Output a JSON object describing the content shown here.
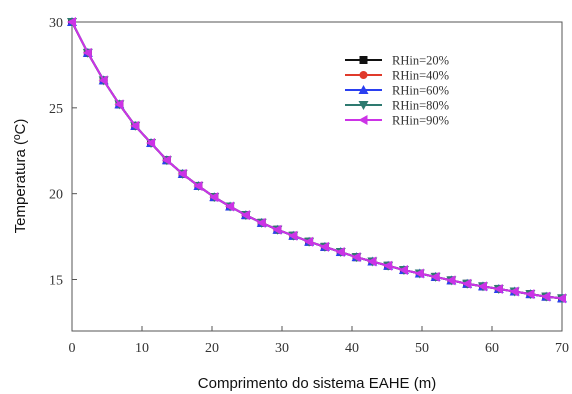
{
  "chart_data": {
    "type": "line",
    "xlabel": "Comprimento do sistema EAHE (m)",
    "ylabel": "Temperatura (ºC)",
    "xlim": [
      0,
      70
    ],
    "ylim": [
      12,
      30
    ],
    "x_ticks": [
      0,
      10,
      20,
      30,
      40,
      50,
      60,
      70
    ],
    "y_ticks": [
      15,
      20,
      25,
      30
    ],
    "grid": false,
    "legend_position": "top-right",
    "x": [
      0,
      2.26,
      4.52,
      6.77,
      9.03,
      11.29,
      13.55,
      15.81,
      18.06,
      20.32,
      22.58,
      24.84,
      27.1,
      29.35,
      31.61,
      33.87,
      36.13,
      38.39,
      40.65,
      42.9,
      45.16,
      47.42,
      49.68,
      51.94,
      54.19,
      56.45,
      58.71,
      60.97,
      63.23,
      65.48,
      67.74,
      70
    ],
    "series": [
      {
        "name": "RHin=20%",
        "marker": "square",
        "color": "#111111",
        "values": [
          30.0,
          28.2,
          26.6,
          25.2,
          23.95,
          22.95,
          21.95,
          21.15,
          20.45,
          19.8,
          19.25,
          18.75,
          18.3,
          17.9,
          17.55,
          17.2,
          16.9,
          16.6,
          16.3,
          16.05,
          15.8,
          15.55,
          15.35,
          15.15,
          14.95,
          14.75,
          14.6,
          14.45,
          14.3,
          14.15,
          14.0,
          13.9
        ]
      },
      {
        "name": "RHin=40%",
        "marker": "circle",
        "color": "#e03a2b",
        "values": [
          30.0,
          28.2,
          26.6,
          25.2,
          23.95,
          22.95,
          21.95,
          21.15,
          20.45,
          19.8,
          19.25,
          18.75,
          18.3,
          17.9,
          17.55,
          17.2,
          16.9,
          16.6,
          16.3,
          16.05,
          15.8,
          15.55,
          15.35,
          15.15,
          14.95,
          14.75,
          14.6,
          14.45,
          14.3,
          14.15,
          14.0,
          13.9
        ]
      },
      {
        "name": "RHin=60%",
        "marker": "triangle-up",
        "color": "#2a3ff0",
        "values": [
          30.0,
          28.2,
          26.6,
          25.2,
          23.95,
          22.95,
          21.95,
          21.15,
          20.45,
          19.8,
          19.25,
          18.75,
          18.3,
          17.9,
          17.55,
          17.2,
          16.9,
          16.6,
          16.3,
          16.05,
          15.8,
          15.55,
          15.35,
          15.15,
          14.95,
          14.75,
          14.6,
          14.45,
          14.3,
          14.15,
          14.0,
          13.9
        ]
      },
      {
        "name": "RHin=80%",
        "marker": "triangle-down",
        "color": "#2e7a70",
        "values": [
          30.0,
          28.2,
          26.6,
          25.2,
          23.95,
          22.95,
          21.95,
          21.15,
          20.45,
          19.8,
          19.25,
          18.75,
          18.3,
          17.9,
          17.55,
          17.2,
          16.9,
          16.6,
          16.3,
          16.05,
          15.8,
          15.55,
          15.35,
          15.15,
          14.95,
          14.75,
          14.6,
          14.45,
          14.3,
          14.15,
          14.0,
          13.9
        ]
      },
      {
        "name": "RHin=90%",
        "marker": "triangle-left",
        "color": "#cc33e6",
        "values": [
          30.0,
          28.2,
          26.6,
          25.2,
          23.95,
          22.95,
          21.95,
          21.15,
          20.45,
          19.8,
          19.25,
          18.75,
          18.3,
          17.9,
          17.55,
          17.2,
          16.9,
          16.6,
          16.3,
          16.05,
          15.8,
          15.55,
          15.35,
          15.15,
          14.95,
          14.75,
          14.6,
          14.45,
          14.3,
          14.15,
          14.0,
          13.9
        ]
      }
    ]
  }
}
